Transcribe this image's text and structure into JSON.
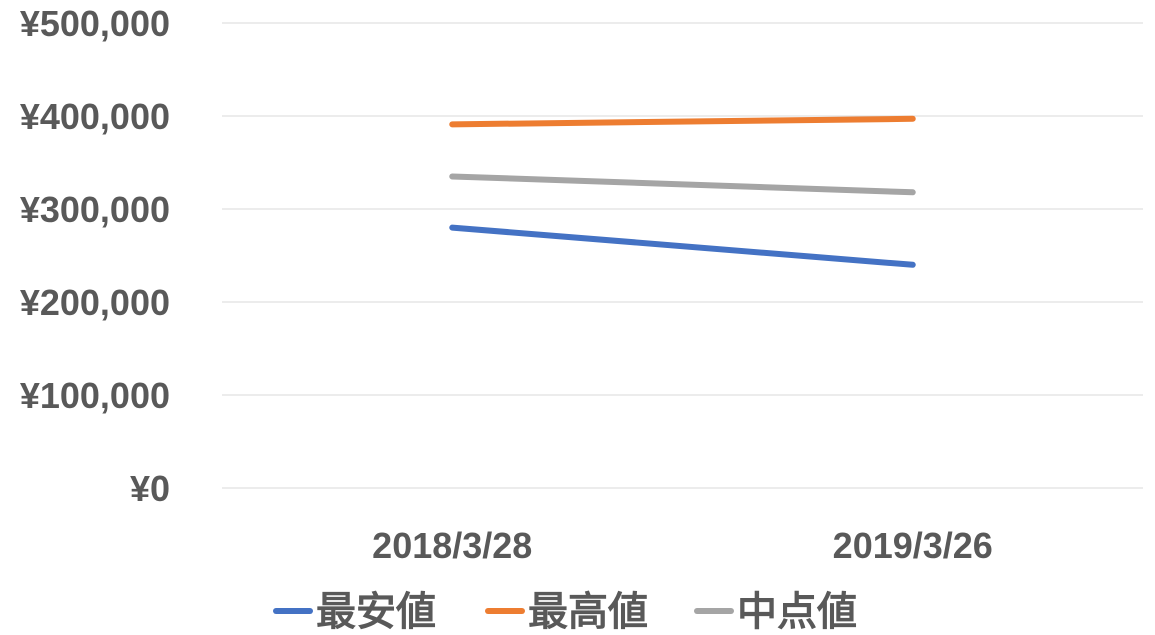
{
  "chart_data": {
    "type": "line",
    "title": "",
    "xlabel": "",
    "ylabel": "",
    "x": [
      "2018/3/28",
      "2019/3/26"
    ],
    "ylim": [
      0,
      500000
    ],
    "y_ticks": [
      0,
      100000,
      200000,
      300000,
      400000,
      500000
    ],
    "y_tick_labels": [
      "¥0",
      "¥100,000",
      "¥200,000",
      "¥300,000",
      "¥400,000",
      "¥500,000"
    ],
    "grid": true,
    "legend": "bottom",
    "series": [
      {
        "name": "最安値",
        "color": "#4472C4",
        "values": [
          280000,
          240000
        ]
      },
      {
        "name": "最高値",
        "color": "#ED7D31",
        "values": [
          391000,
          397000
        ]
      },
      {
        "name": "中点値",
        "color": "#A5A5A5",
        "values": [
          335000,
          318000
        ]
      }
    ]
  }
}
